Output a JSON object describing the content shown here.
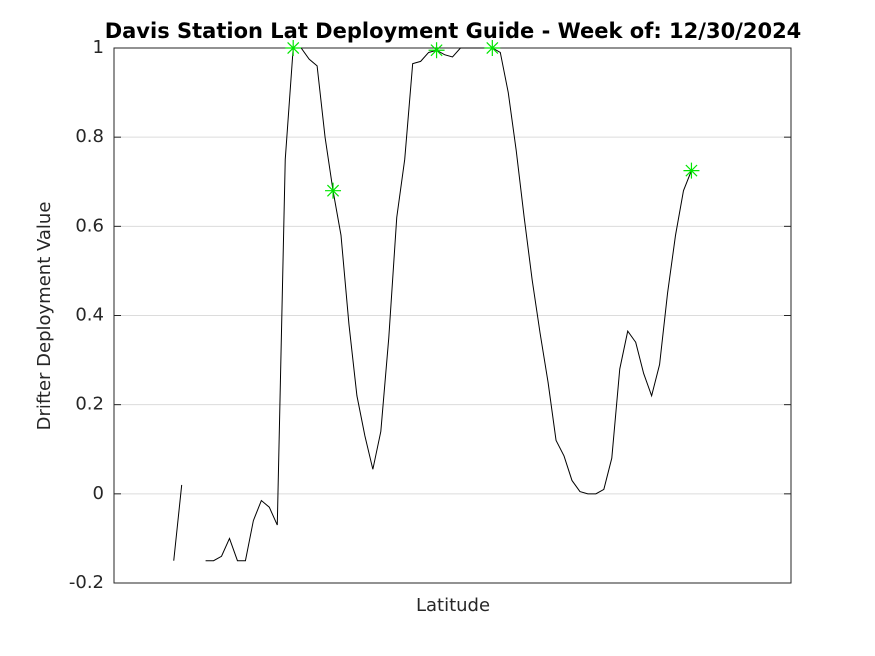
{
  "chart_data": {
    "type": "line",
    "title": "Davis Station Lat Deployment Guide - Week of: 12/30/2024",
    "xlabel": "Latitude",
    "ylabel": "Drifter Deployment Value",
    "categories": [
      null,
      null,
      null,
      null,
      null,
      null,
      null,
      null,
      null,
      null,
      null,
      null,
      null,
      null,
      null,
      null,
      null,
      null,
      null,
      null,
      null,
      null,
      null,
      null,
      null,
      null,
      null,
      null,
      null,
      null,
      null,
      null,
      null,
      null,
      null,
      null,
      null,
      null,
      null,
      null,
      null,
      null,
      null,
      null,
      null,
      null,
      null,
      null,
      null,
      null,
      null,
      null,
      null,
      null,
      null,
      null,
      null,
      null,
      null,
      null,
      null,
      null,
      null,
      null,
      null,
      null,
      null,
      null,
      null,
      null,
      null,
      null,
      null,
      null,
      null,
      null,
      null,
      null,
      null,
      null,
      null,
      null,
      null,
      null,
      null
    ],
    "series": [
      {
        "style": "line",
        "color": "#000000",
        "values": [
          null,
          null,
          null,
          null,
          null,
          null,
          null,
          -0.15,
          0.02,
          null,
          null,
          -0.15,
          -0.15,
          -0.14,
          -0.1,
          -0.15,
          -0.15,
          -0.06,
          -0.015,
          -0.03,
          -0.07,
          0.75,
          1.0,
          1.0,
          0.975,
          0.96,
          0.8,
          0.68,
          0.58,
          0.38,
          0.22,
          0.13,
          0.055,
          0.14,
          0.35,
          0.62,
          0.75,
          0.965,
          0.97,
          0.99,
          0.995,
          0.985,
          0.98,
          1.0,
          1.0,
          1.0,
          1.0,
          1.0,
          0.99,
          0.9,
          0.77,
          0.62,
          0.48,
          0.36,
          0.25,
          0.12,
          0.085,
          0.03,
          0.005,
          0,
          0,
          0.01,
          0.08,
          0.28,
          0.365,
          0.34,
          0.27,
          0.22,
          0.29,
          0.45,
          0.58,
          0.68,
          0.725,
          null,
          null,
          null,
          null,
          null,
          null,
          null,
          null,
          null,
          null,
          null,
          null
        ]
      },
      {
        "style": "marker",
        "color": "#00e600",
        "values": [
          null,
          null,
          null,
          null,
          null,
          null,
          null,
          null,
          null,
          null,
          null,
          null,
          null,
          null,
          null,
          null,
          null,
          null,
          null,
          null,
          null,
          null,
          1.0,
          null,
          null,
          null,
          null,
          0.68,
          null,
          null,
          null,
          null,
          null,
          null,
          null,
          null,
          null,
          null,
          null,
          null,
          0.995,
          null,
          null,
          null,
          null,
          null,
          null,
          1.0,
          null,
          null,
          null,
          null,
          null,
          null,
          null,
          null,
          null,
          null,
          null,
          null,
          null,
          null,
          null,
          null,
          null,
          null,
          null,
          null,
          null,
          null,
          null,
          null,
          0.725,
          null,
          null,
          null,
          null,
          null,
          null,
          null,
          null,
          null,
          null,
          null,
          null
        ]
      }
    ],
    "ylim": [
      -0.2,
      1
    ],
    "yticks": [
      -0.2,
      0,
      0.2,
      0.4,
      0.6,
      0.8,
      1
    ],
    "grid": true
  }
}
